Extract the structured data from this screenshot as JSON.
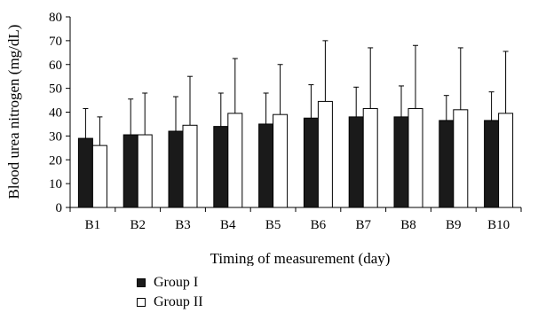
{
  "chart_data": {
    "type": "bar",
    "xlabel": "Timing of measurement (day)",
    "ylabel": "Blood urea nitrogen (mg/dL)",
    "ylim": [
      0,
      80
    ],
    "yticks": [
      0,
      10,
      20,
      30,
      40,
      50,
      60,
      70,
      80
    ],
    "categories": [
      "B1",
      "B2",
      "B3",
      "B4",
      "B5",
      "B6",
      "B7",
      "B8",
      "B9",
      "B10"
    ],
    "grid": false,
    "legend_position": "bottom-left",
    "series": [
      {
        "name": "Group I",
        "color": "#1a1a1a",
        "values": [
          29,
          30.5,
          32,
          34,
          35,
          37.5,
          38,
          38,
          36.5,
          36.5
        ],
        "error_upper": [
          41.5,
          45.5,
          46.5,
          48,
          48,
          51.5,
          50.5,
          51,
          47,
          48.5
        ]
      },
      {
        "name": "Group II",
        "color": "#ffffff",
        "values": [
          26,
          30.5,
          34.5,
          39.5,
          39,
          44.5,
          41.5,
          41.5,
          41,
          39.5
        ],
        "error_upper": [
          38,
          48,
          55,
          62.5,
          60,
          70,
          67,
          68,
          67,
          65.5
        ]
      }
    ]
  }
}
